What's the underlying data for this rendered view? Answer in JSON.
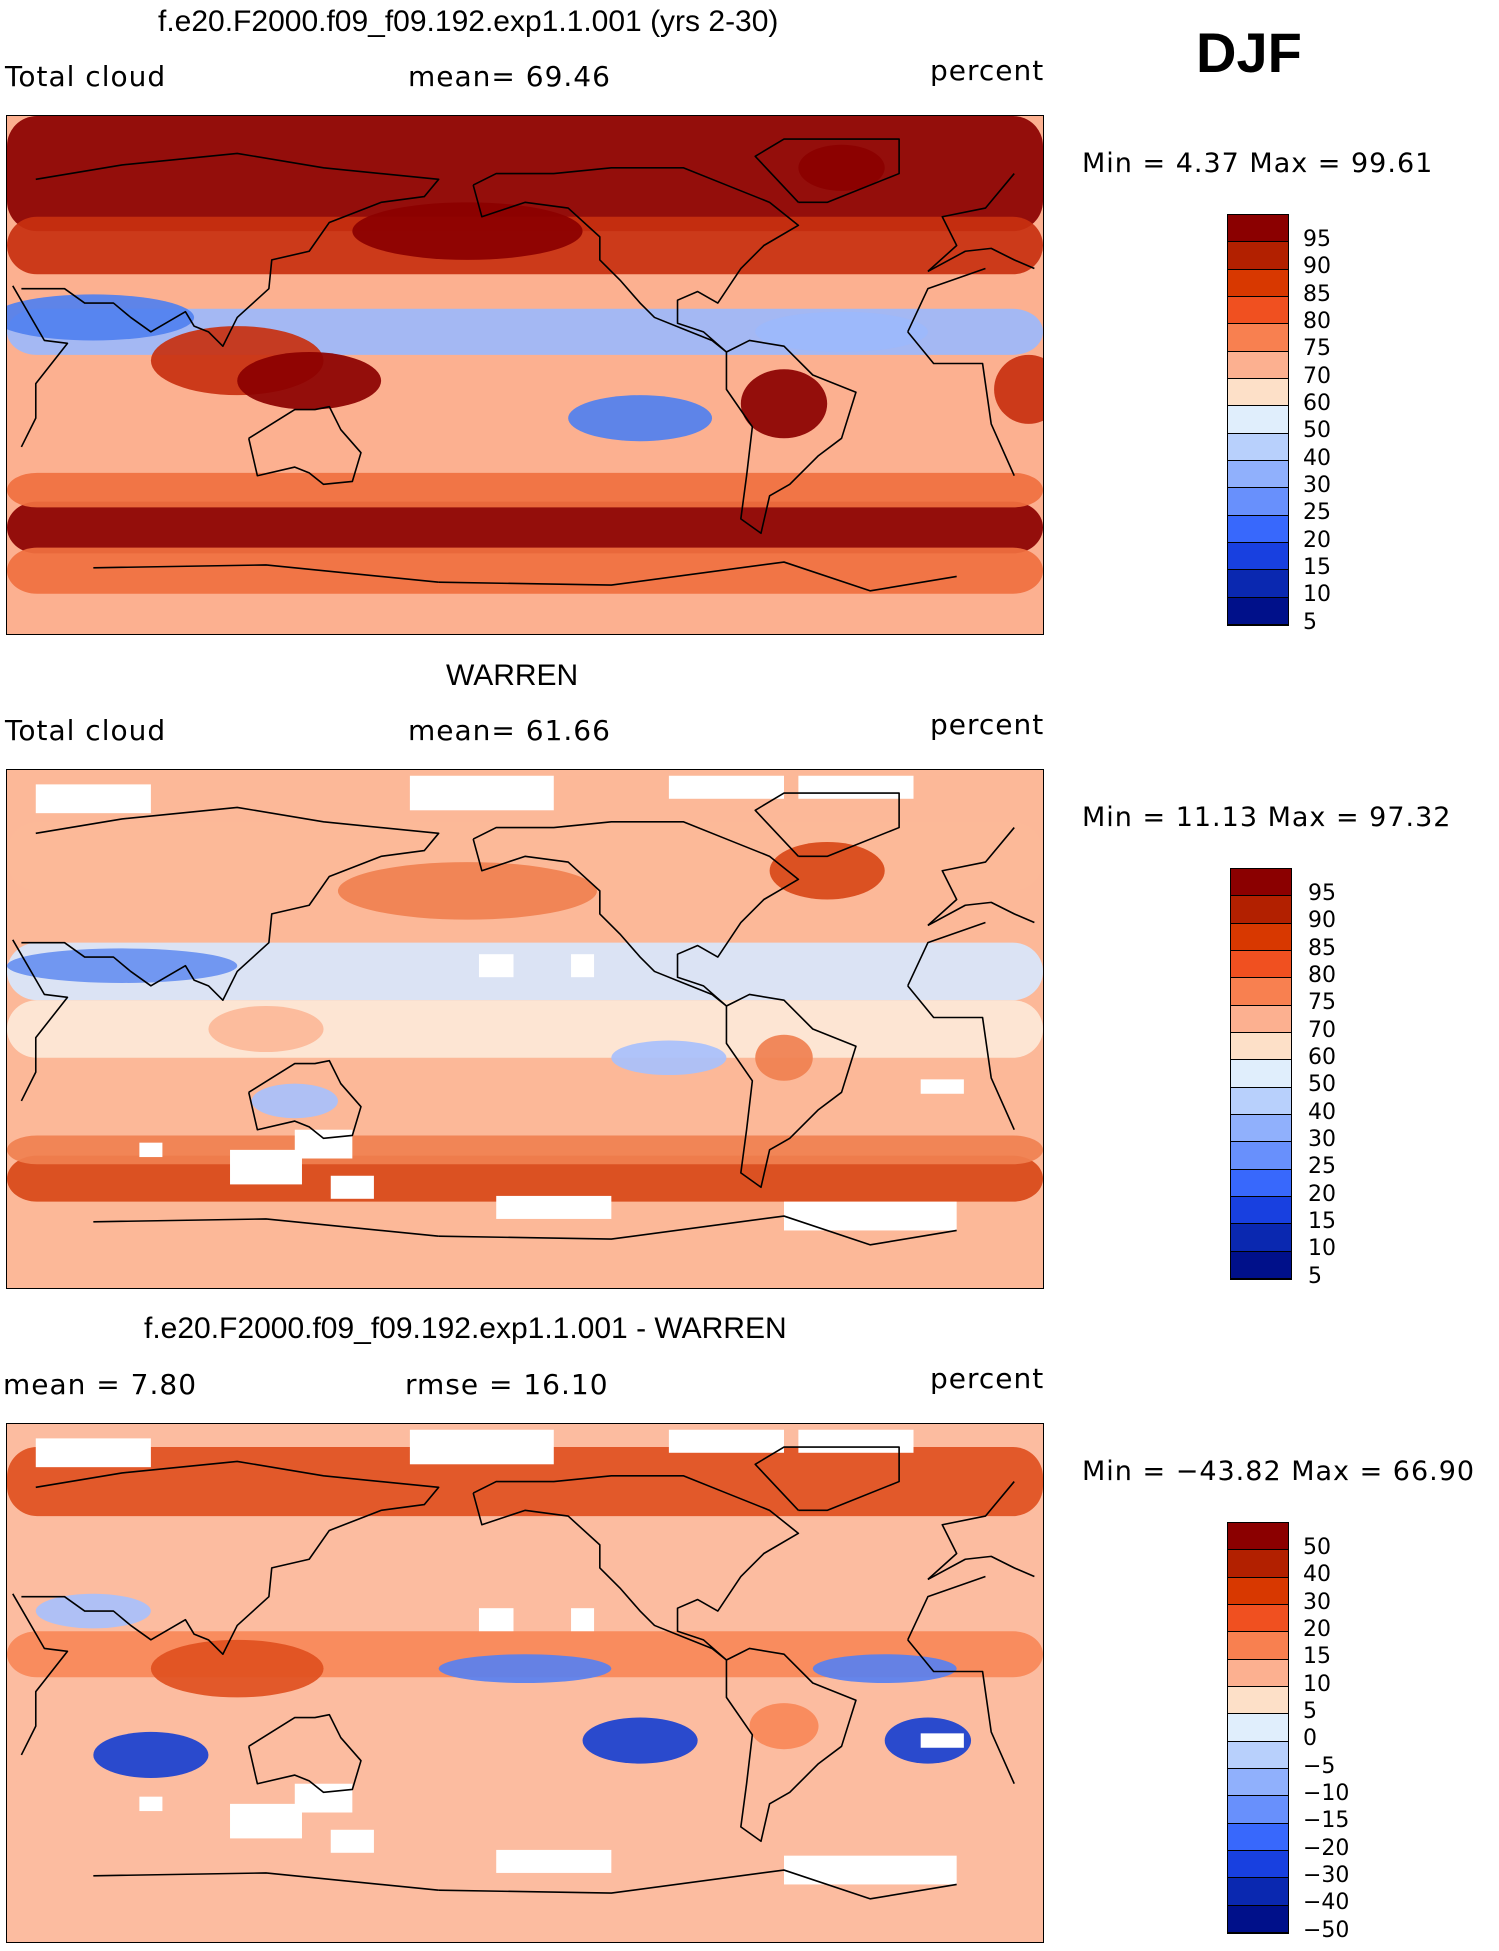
{
  "season": "DJF",
  "panels": [
    {
      "title": "f.e20.F2000.f09_f09.192.exp1.1.001 (yrs 2-30)",
      "left_label": "Total cloud",
      "mean_text": "mean=   69.46",
      "units": "percent",
      "minmax_text": "Min =    4.37 Max =   99.61",
      "colorbar": {
        "levels": [
          "95",
          "90",
          "85",
          "80",
          "75",
          "70",
          "60",
          "50",
          "40",
          "30",
          "25",
          "20",
          "15",
          "10",
          "5"
        ],
        "colors": [
          "#8b0000",
          "#b22000",
          "#d83800",
          "#f05020",
          "#f88050",
          "#fcb090",
          "#fde0c8",
          "#e0eefc",
          "#b8d0fc",
          "#90b0fc",
          "#6890fc",
          "#3868fc",
          "#1840e0",
          "#0a28b0",
          "#00108a"
        ]
      },
      "map_palette": [
        "#8b0000",
        "#c83010",
        "#f07040",
        "#fcb090",
        "#fde8d8",
        "#d8e6fc",
        "#9cb8fc",
        "#5080f0",
        "#1840d0"
      ],
      "regions": [
        {
          "type": "band",
          "lat": 70,
          "half": 20,
          "level": 0
        },
        {
          "type": "band",
          "lat": -53,
          "half": 9,
          "level": 0
        },
        {
          "type": "band",
          "lat": -40,
          "half": 6,
          "level": 2
        },
        {
          "type": "band",
          "lat": -68,
          "half": 8,
          "level": 2
        },
        {
          "type": "band",
          "lat": 15,
          "half": 8,
          "level": 6
        },
        {
          "type": "band",
          "lat": 45,
          "half": 10,
          "level": 1
        },
        {
          "type": "blob",
          "lon": 110,
          "lat": 5,
          "rx": 30,
          "ry": 12,
          "level": 1
        },
        {
          "type": "blob",
          "lon": 135,
          "lat": -2,
          "rx": 25,
          "ry": 10,
          "level": 0
        },
        {
          "type": "blob",
          "lon": -60,
          "lat": -10,
          "rx": 15,
          "ry": 12,
          "level": 0
        },
        {
          "type": "blob",
          "lon": 25,
          "lat": -5,
          "rx": 12,
          "ry": 12,
          "level": 1
        },
        {
          "type": "blob",
          "lon": -110,
          "lat": -15,
          "rx": 25,
          "ry": 8,
          "level": 7
        },
        {
          "type": "blob",
          "lon": 60,
          "lat": 20,
          "rx": 35,
          "ry": 8,
          "level": 7
        },
        {
          "type": "blob",
          "lon": -40,
          "lat": 15,
          "rx": 30,
          "ry": 7,
          "level": 6
        },
        {
          "type": "blob",
          "lon": -170,
          "lat": 50,
          "rx": 40,
          "ry": 10,
          "level": 0
        },
        {
          "type": "blob",
          "lon": -40,
          "lat": 72,
          "rx": 15,
          "ry": 8,
          "level": 0
        }
      ]
    },
    {
      "title": "WARREN",
      "left_label": "Total cloud",
      "mean_text": "mean=   61.66",
      "units": "percent",
      "minmax_text": "Min =   11.13 Max =   97.32",
      "colorbar": {
        "levels": [
          "95",
          "90",
          "85",
          "80",
          "75",
          "70",
          "60",
          "50",
          "40",
          "30",
          "25",
          "20",
          "15",
          "10",
          "5"
        ],
        "colors": [
          "#8b0000",
          "#b22000",
          "#d83800",
          "#f05020",
          "#f88050",
          "#fcb090",
          "#fde0c8",
          "#e0eefc",
          "#b8d0fc",
          "#90b0fc",
          "#6890fc",
          "#3868fc",
          "#1840e0",
          "#0a28b0",
          "#00108a"
        ]
      },
      "map_palette": [
        "#b22000",
        "#d84818",
        "#f08050",
        "#fcb898",
        "#fde8d8",
        "#d8e6fc",
        "#a8c0fc",
        "#6890f0",
        "#2850d8"
      ],
      "regions": [
        {
          "type": "band",
          "lat": 60,
          "half": 12,
          "level": 3
        },
        {
          "type": "band",
          "lat": -52,
          "half": 8,
          "level": 1
        },
        {
          "type": "band",
          "lat": -42,
          "half": 5,
          "level": 2
        },
        {
          "type": "band",
          "lat": 20,
          "half": 10,
          "level": 5
        },
        {
          "type": "band",
          "lat": 0,
          "half": 10,
          "level": 4
        },
        {
          "type": "blob",
          "lon": 70,
          "lat": 22,
          "rx": 40,
          "ry": 6,
          "level": 7
        },
        {
          "type": "blob",
          "lon": -170,
          "lat": 48,
          "rx": 45,
          "ry": 10,
          "level": 2
        },
        {
          "type": "blob",
          "lon": -45,
          "lat": 55,
          "rx": 20,
          "ry": 10,
          "level": 1
        },
        {
          "type": "blob",
          "lon": -60,
          "lat": -10,
          "rx": 10,
          "ry": 8,
          "level": 2
        },
        {
          "type": "blob",
          "lon": 120,
          "lat": 0,
          "rx": 20,
          "ry": 8,
          "level": 3
        },
        {
          "type": "blob",
          "lon": 130,
          "lat": -25,
          "rx": 15,
          "ry": 6,
          "level": 6
        },
        {
          "type": "blob",
          "lon": -100,
          "lat": -10,
          "rx": 20,
          "ry": 6,
          "level": 6
        }
      ],
      "missing": [
        {
          "lon": -165,
          "lat": 82,
          "w": 50,
          "h": 12
        },
        {
          "lon": -80,
          "lat": 84,
          "w": 40,
          "h": 8
        },
        {
          "lon": -35,
          "lat": 84,
          "w": 40,
          "h": 8
        },
        {
          "lon": 60,
          "lat": 80,
          "w": 40,
          "h": 10
        },
        {
          "lon": -160,
          "lat": 22,
          "w": 12,
          "h": 8
        },
        {
          "lon": -130,
          "lat": 22,
          "w": 8,
          "h": 8
        },
        {
          "lon": 80,
          "lat": -42,
          "w": 8,
          "h": 5
        },
        {
          "lon": 120,
          "lat": -48,
          "w": 25,
          "h": 12
        },
        {
          "lon": 140,
          "lat": -40,
          "w": 20,
          "h": 10
        },
        {
          "lon": 150,
          "lat": -55,
          "w": 15,
          "h": 8
        },
        {
          "lon": -30,
          "lat": -65,
          "w": 60,
          "h": 10
        },
        {
          "lon": -140,
          "lat": -62,
          "w": 40,
          "h": 8
        },
        {
          "lon": -5,
          "lat": -20,
          "w": 15,
          "h": 5
        }
      ]
    },
    {
      "title": "f.e20.F2000.f09_f09.192.exp1.1.001 - WARREN",
      "left_label": "mean =    7.80",
      "mean_text": "rmse =   16.10",
      "units": "percent",
      "minmax_text": "Min = −43.82  Max =   66.90",
      "colorbar": {
        "levels": [
          "50",
          "40",
          "30",
          "20",
          "15",
          "10",
          "5",
          "0",
          "−5",
          "−10",
          "−15",
          "−20",
          "−30",
          "−40",
          "−50"
        ],
        "colors": [
          "#8b0000",
          "#b22000",
          "#d83800",
          "#f05020",
          "#f88050",
          "#fcb090",
          "#fde0c8",
          "#e0eefc",
          "#b8d0fc",
          "#90b0fc",
          "#6890fc",
          "#3868fc",
          "#1840e0",
          "#0a28b0",
          "#00108a"
        ]
      },
      "map_palette": [
        "#b22000",
        "#e05020",
        "#f88858",
        "#fcbca0",
        "#fde8d8",
        "#d8e6fc",
        "#a8c0fc",
        "#5880f0",
        "#1840d0"
      ],
      "regions": [
        {
          "type": "band",
          "lat": 70,
          "half": 12,
          "level": 1
        },
        {
          "type": "band",
          "lat": 10,
          "half": 8,
          "level": 2
        },
        {
          "type": "band",
          "lat": -40,
          "half": 8,
          "level": 3
        },
        {
          "type": "blob",
          "lon": -150,
          "lat": 5,
          "rx": 30,
          "ry": 5,
          "level": 7
        },
        {
          "type": "blob",
          "lon": -25,
          "lat": 5,
          "rx": 25,
          "ry": 5,
          "level": 7
        },
        {
          "type": "blob",
          "lon": -110,
          "lat": -20,
          "rx": 20,
          "ry": 8,
          "level": 8
        },
        {
          "type": "blob",
          "lon": -10,
          "lat": -20,
          "rx": 15,
          "ry": 8,
          "level": 8
        },
        {
          "type": "blob",
          "lon": 80,
          "lat": -25,
          "rx": 20,
          "ry": 8,
          "level": 8
        },
        {
          "type": "blob",
          "lon": 110,
          "lat": 5,
          "rx": 30,
          "ry": 10,
          "level": 1
        },
        {
          "type": "blob",
          "lon": 60,
          "lat": 25,
          "rx": 20,
          "ry": 6,
          "level": 6
        },
        {
          "type": "blob",
          "lon": -60,
          "lat": -15,
          "rx": 12,
          "ry": 8,
          "level": 2
        }
      ],
      "missing": [
        {
          "lon": -165,
          "lat": 82,
          "w": 50,
          "h": 12
        },
        {
          "lon": -80,
          "lat": 84,
          "w": 40,
          "h": 8
        },
        {
          "lon": -35,
          "lat": 84,
          "w": 40,
          "h": 8
        },
        {
          "lon": 60,
          "lat": 80,
          "w": 40,
          "h": 10
        },
        {
          "lon": -160,
          "lat": 22,
          "w": 12,
          "h": 8
        },
        {
          "lon": -130,
          "lat": 22,
          "w": 8,
          "h": 8
        },
        {
          "lon": 80,
          "lat": -42,
          "w": 8,
          "h": 5
        },
        {
          "lon": 120,
          "lat": -48,
          "w": 25,
          "h": 12
        },
        {
          "lon": 140,
          "lat": -40,
          "w": 20,
          "h": 10
        },
        {
          "lon": 150,
          "lat": -55,
          "w": 15,
          "h": 8
        },
        {
          "lon": -30,
          "lat": -65,
          "w": 60,
          "h": 10
        },
        {
          "lon": -140,
          "lat": -62,
          "w": 40,
          "h": 8
        },
        {
          "lon": -5,
          "lat": -20,
          "w": 15,
          "h": 5
        }
      ]
    }
  ]
}
